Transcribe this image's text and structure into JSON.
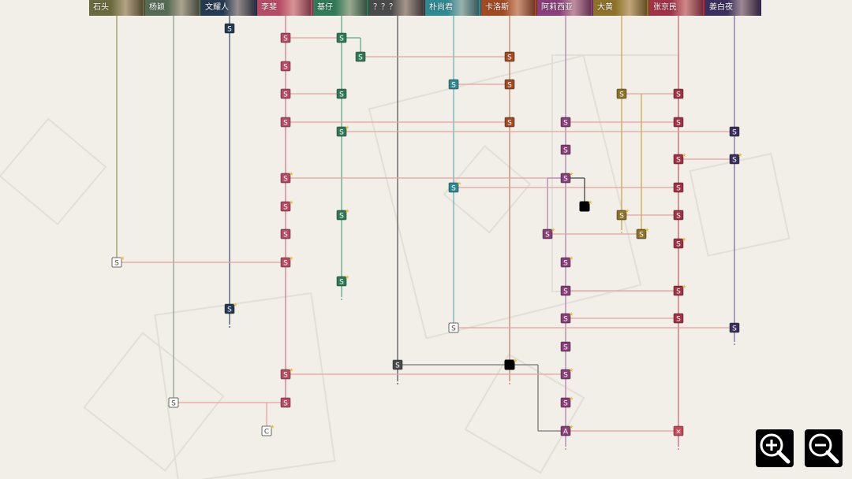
{
  "characters": [
    {
      "name": "石头",
      "color": "#6b6a3e"
    },
    {
      "name": "杨颖",
      "color": "#556b54"
    },
    {
      "name": "文耀人",
      "color": "#243a52"
    },
    {
      "name": "李斐",
      "color": "#b84a66"
    },
    {
      "name": "基仔",
      "color": "#2f7a58"
    },
    {
      "name": "？？？",
      "color": "#4a4a4a"
    },
    {
      "name": "朴尚君",
      "color": "#2f8a94"
    },
    {
      "name": "卡洛斯",
      "color": "#a24a22"
    },
    {
      "name": "阿莉西亚",
      "color": "#8a3e7a"
    },
    {
      "name": "大黄",
      "color": "#8d7328"
    },
    {
      "name": "张京民",
      "color": "#a33246"
    },
    {
      "name": "姜白夜",
      "color": "#3a2f5e"
    }
  ],
  "node_labels": {
    "story": "S",
    "choice": "C",
    "alt": "A",
    "locked": "×"
  },
  "zoom": {
    "in_label": "zoom in",
    "out_label": "zoom out"
  }
}
